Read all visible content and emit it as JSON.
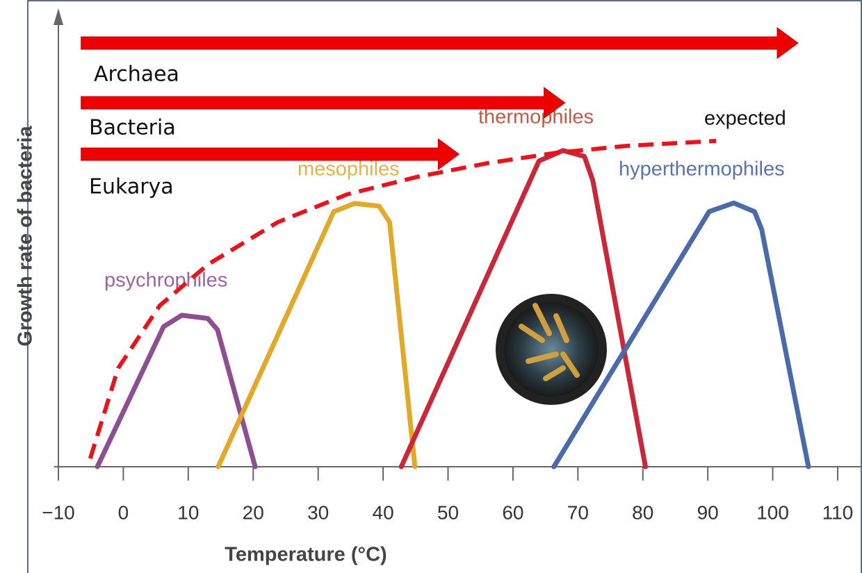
{
  "chart_data": {
    "type": "line",
    "xlabel": "Temperature (°C)",
    "ylabel": "Growth rate of bacteria",
    "xlim": [
      -10,
      110
    ],
    "ylim": [
      0,
      100
    ],
    "xticks": [
      {
        "value": -10,
        "label": "−10"
      },
      0,
      10,
      20,
      30,
      40,
      50,
      60,
      70,
      80,
      90,
      100,
      110
    ],
    "series": [
      {
        "name": "psychrophiles",
        "color": "#8e4f92",
        "x": [
          -4,
          6.2,
          9,
          13,
          14.5,
          20.3
        ],
        "values": [
          0,
          30.7,
          33.2,
          32.5,
          30,
          0
        ]
      },
      {
        "name": "mesophiles",
        "color": "#e0a92a",
        "x": [
          14.6,
          32.4,
          35.6,
          39.4,
          41,
          44.9
        ],
        "values": [
          0,
          55.9,
          57.7,
          57.1,
          53.6,
          0
        ]
      },
      {
        "name": "thermophiles",
        "color": "#c8283a",
        "x": [
          42.8,
          64,
          67.7,
          71,
          72.3,
          80.4
        ],
        "values": [
          0,
          67,
          69.3,
          68,
          62.7,
          0
        ]
      },
      {
        "name": "hyperthermophiles",
        "color": "#4a6aaa",
        "x": [
          66.3,
          90.2,
          94,
          97.2,
          98.3,
          105.5
        ],
        "values": [
          0,
          55.9,
          57.8,
          55.9,
          52,
          0
        ]
      },
      {
        "name": "expected",
        "color": "#e8141c",
        "dashed": true,
        "x": [
          -5.1,
          -0.8,
          5.6,
          13.1,
          23.8,
          34.5,
          45.2,
          56,
          66.7,
          77.4,
          91.3
        ],
        "values": [
          1.8,
          21.6,
          35.3,
          44.4,
          53.6,
          59.7,
          63.5,
          66.5,
          68.8,
          70.3,
          71.4
        ]
      }
    ],
    "ranges": [
      {
        "name": "Archaea",
        "color": "#ee0000",
        "start": -6.5,
        "end": 103.9
      },
      {
        "name": "Bacteria",
        "color": "#ee0000",
        "start": -6.5,
        "end": 68
      },
      {
        "name": "Eukarya",
        "color": "#ee0000",
        "start": -6.5,
        "end": 51.7
      }
    ]
  }
}
